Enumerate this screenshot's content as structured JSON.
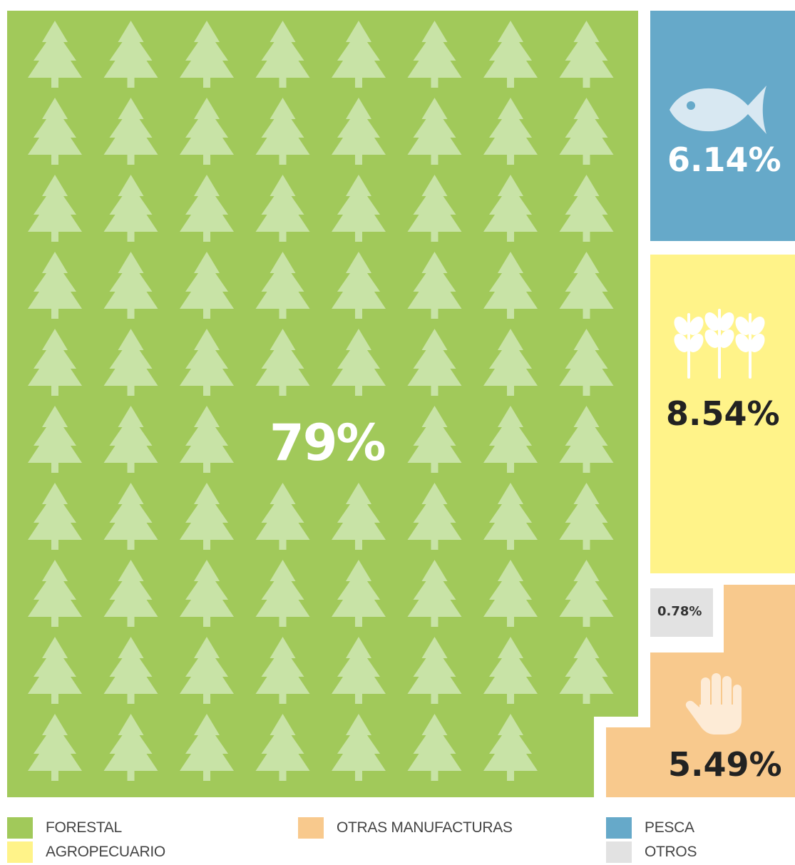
{
  "chart_data": {
    "type": "treemap",
    "unit": "%",
    "segments": [
      {
        "name": "FORESTAL",
        "value": 79,
        "label": "79%",
        "color": "#a1c95a",
        "icon": "tree-icon"
      },
      {
        "name": "PESCA",
        "value": 6.14,
        "label": "6.14%",
        "color": "#66a9c9",
        "icon": "fish-icon"
      },
      {
        "name": "AGROPECUARIO",
        "value": 8.54,
        "label": "8.54%",
        "color": "#fff389",
        "icon": "wheat-icon"
      },
      {
        "name": "OTROS",
        "value": 0.78,
        "label": "0.78%",
        "color": "#e2e2e2",
        "icon": ""
      },
      {
        "name": "OTRAS MANUFACTURAS",
        "value": 5.49,
        "label": "5.49%",
        "color": "#f8c98d",
        "icon": "hand-icon"
      }
    ]
  },
  "legend": {
    "items": [
      {
        "label": "FORESTAL",
        "color": "#a1c95a"
      },
      {
        "label": "OTRAS MANUFACTURAS",
        "color": "#f8c98d"
      },
      {
        "label": "PESCA",
        "color": "#66a9c9"
      },
      {
        "label": "AGROPECUARIO",
        "color": "#fff389"
      },
      {
        "label": "OTROS",
        "color": "#e2e2e2"
      }
    ]
  }
}
